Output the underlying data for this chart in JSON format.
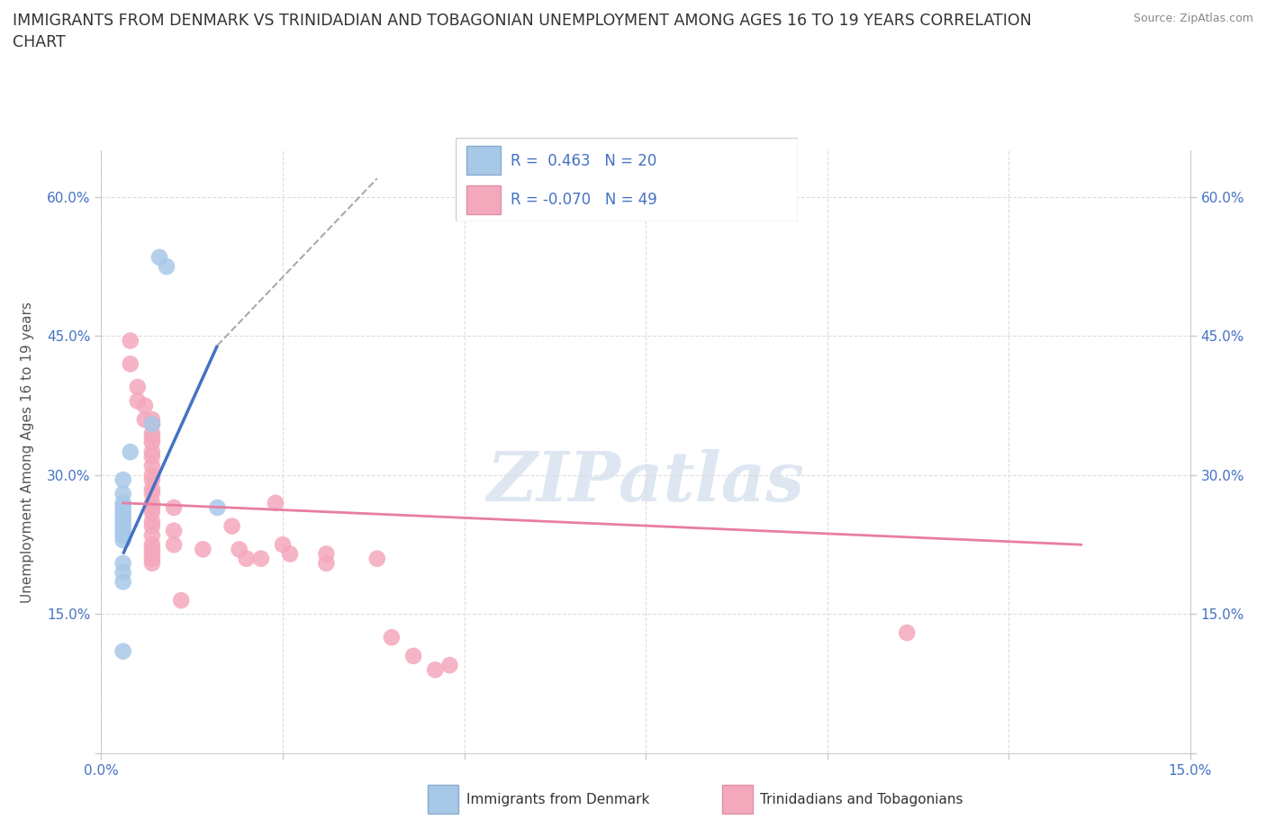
{
  "title": "IMMIGRANTS FROM DENMARK VS TRINIDADIAN AND TOBAGONIAN UNEMPLOYMENT AMONG AGES 16 TO 19 YEARS CORRELATION\nCHART",
  "source": "Source: ZipAtlas.com",
  "ylabel": "Unemployment Among Ages 16 to 19 years",
  "xlim": [
    0.0,
    0.15
  ],
  "ylim": [
    0.0,
    0.65
  ],
  "xticks": [
    0.0,
    0.025,
    0.05,
    0.075,
    0.1,
    0.125,
    0.15
  ],
  "yticks": [
    0.0,
    0.15,
    0.3,
    0.45,
    0.6
  ],
  "denmark_color": "#a8c8e8",
  "trinidad_color": "#f4a8bc",
  "denmark_scatter": [
    [
      0.008,
      0.535
    ],
    [
      0.009,
      0.525
    ],
    [
      0.007,
      0.355
    ],
    [
      0.004,
      0.325
    ],
    [
      0.003,
      0.295
    ],
    [
      0.003,
      0.28
    ],
    [
      0.003,
      0.27
    ],
    [
      0.003,
      0.265
    ],
    [
      0.003,
      0.26
    ],
    [
      0.003,
      0.255
    ],
    [
      0.003,
      0.25
    ],
    [
      0.003,
      0.245
    ],
    [
      0.003,
      0.24
    ],
    [
      0.003,
      0.235
    ],
    [
      0.003,
      0.23
    ],
    [
      0.003,
      0.205
    ],
    [
      0.003,
      0.195
    ],
    [
      0.003,
      0.185
    ],
    [
      0.016,
      0.265
    ],
    [
      0.003,
      0.11
    ]
  ],
  "trinidad_scatter": [
    [
      0.004,
      0.445
    ],
    [
      0.004,
      0.42
    ],
    [
      0.005,
      0.395
    ],
    [
      0.005,
      0.38
    ],
    [
      0.006,
      0.375
    ],
    [
      0.006,
      0.36
    ],
    [
      0.007,
      0.36
    ],
    [
      0.007,
      0.355
    ],
    [
      0.007,
      0.345
    ],
    [
      0.007,
      0.34
    ],
    [
      0.007,
      0.335
    ],
    [
      0.007,
      0.325
    ],
    [
      0.007,
      0.32
    ],
    [
      0.007,
      0.31
    ],
    [
      0.007,
      0.3
    ],
    [
      0.007,
      0.295
    ],
    [
      0.007,
      0.285
    ],
    [
      0.007,
      0.28
    ],
    [
      0.007,
      0.27
    ],
    [
      0.007,
      0.265
    ],
    [
      0.007,
      0.26
    ],
    [
      0.007,
      0.25
    ],
    [
      0.007,
      0.245
    ],
    [
      0.007,
      0.235
    ],
    [
      0.007,
      0.225
    ],
    [
      0.007,
      0.22
    ],
    [
      0.007,
      0.215
    ],
    [
      0.007,
      0.21
    ],
    [
      0.007,
      0.205
    ],
    [
      0.01,
      0.265
    ],
    [
      0.01,
      0.24
    ],
    [
      0.01,
      0.225
    ],
    [
      0.011,
      0.165
    ],
    [
      0.014,
      0.22
    ],
    [
      0.018,
      0.245
    ],
    [
      0.019,
      0.22
    ],
    [
      0.02,
      0.21
    ],
    [
      0.022,
      0.21
    ],
    [
      0.024,
      0.27
    ],
    [
      0.025,
      0.225
    ],
    [
      0.026,
      0.215
    ],
    [
      0.031,
      0.215
    ],
    [
      0.031,
      0.205
    ],
    [
      0.038,
      0.21
    ],
    [
      0.04,
      0.125
    ],
    [
      0.043,
      0.105
    ],
    [
      0.046,
      0.09
    ],
    [
      0.048,
      0.095
    ],
    [
      0.111,
      0.13
    ]
  ],
  "denmark_R": 0.463,
  "denmark_N": 20,
  "trinidad_R": -0.07,
  "trinidad_N": 49,
  "denmark_line_solid": [
    [
      0.003,
      0.215
    ],
    [
      0.016,
      0.44
    ]
  ],
  "denmark_line_dashed": [
    [
      0.016,
      0.44
    ],
    [
      0.038,
      0.62
    ]
  ],
  "trinidad_line": [
    [
      0.003,
      0.27
    ],
    [
      0.135,
      0.225
    ]
  ],
  "background_color": "#ffffff",
  "grid_color": "#dddddd",
  "watermark": "ZIPatlas"
}
